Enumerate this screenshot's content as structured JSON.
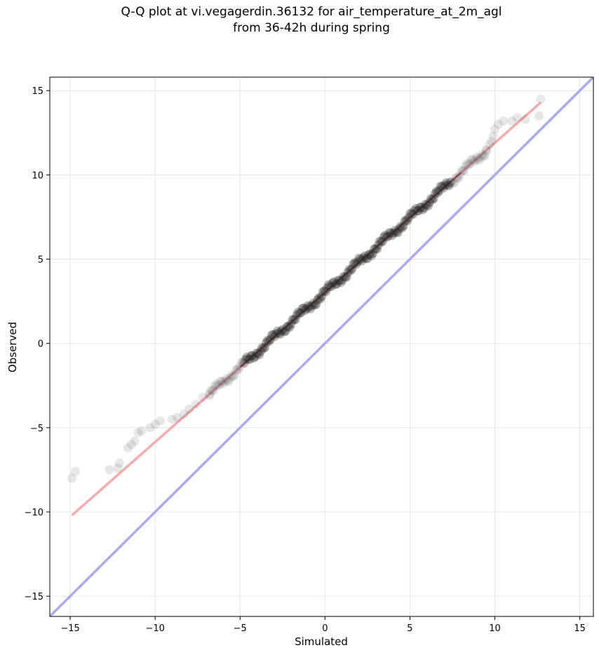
{
  "chart_data": {
    "type": "scatter",
    "title_line1": "Q-Q plot at vi.vegagerdin.36132 for air_temperature_at_2m_agl",
    "title_line2": "from 36-42h during spring",
    "xlabel": "Simulated",
    "ylabel": "Observed",
    "xlim": [
      -16.2,
      15.8
    ],
    "ylim": [
      -16.2,
      15.8
    ],
    "xticks": [
      -15,
      -10,
      -5,
      0,
      5,
      10,
      15
    ],
    "yticks": [
      -15,
      -10,
      -5,
      0,
      5,
      10,
      15
    ],
    "xtick_labels": [
      "−15",
      "−10",
      "−5",
      "0",
      "5",
      "10",
      "15"
    ],
    "ytick_labels": [
      "−15",
      "−10",
      "−5",
      "0",
      "5",
      "10",
      "15"
    ],
    "grid": true,
    "colors": {
      "points": "#555555",
      "fit_line": "#f4a6a6",
      "identity_line": "#aaaaf0",
      "center_line": "#8b0000"
    },
    "identity_line": [
      [
        -16.2,
        -16.2
      ],
      [
        15.8,
        15.8
      ]
    ],
    "fit_line": [
      [
        -14.9,
        -10.2
      ],
      [
        12.7,
        14.3
      ]
    ],
    "tail_points": [
      [
        -14.9,
        -8.0
      ],
      [
        -14.7,
        -7.6
      ],
      [
        -12.7,
        -7.5
      ],
      [
        -12.1,
        -7.1
      ],
      [
        -12.2,
        -7.4
      ],
      [
        -11.6,
        -6.2
      ],
      [
        -11.4,
        -6.0
      ],
      [
        -11.2,
        -5.8
      ],
      [
        -11.0,
        -5.3
      ],
      [
        -10.8,
        -5.2
      ],
      [
        -10.3,
        -5.0
      ],
      [
        -10.0,
        -4.8
      ],
      [
        -9.7,
        -4.6
      ],
      [
        -9.0,
        -4.5
      ],
      [
        -8.7,
        -4.4
      ],
      [
        -8.3,
        -4.2
      ],
      [
        -8.0,
        -3.9
      ],
      [
        -7.6,
        -3.6
      ],
      [
        -7.2,
        -3.2
      ],
      [
        -6.8,
        -3.1
      ],
      [
        9.5,
        11.5
      ],
      [
        9.7,
        11.8
      ],
      [
        9.8,
        12.0
      ],
      [
        9.9,
        12.3
      ],
      [
        10.0,
        12.7
      ],
      [
        10.2,
        13.0
      ],
      [
        10.5,
        13.2
      ],
      [
        11.0,
        13.2
      ],
      [
        11.3,
        13.4
      ],
      [
        11.8,
        13.3
      ],
      [
        12.7,
        14.5
      ],
      [
        12.6,
        13.5
      ]
    ]
  }
}
